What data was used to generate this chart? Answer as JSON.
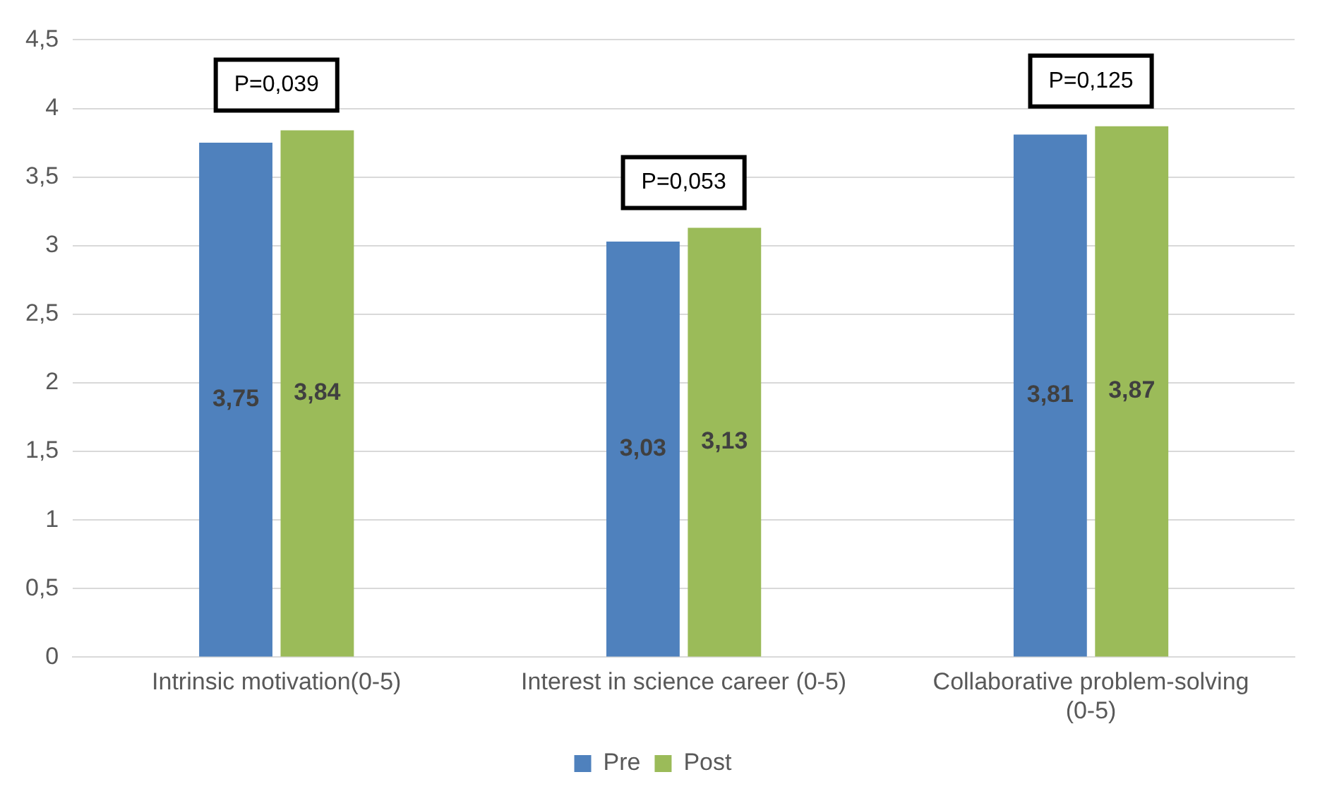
{
  "chart_data": {
    "type": "bar",
    "categories": [
      "Intrinsic motivation(0-5)",
      "Interest in science career (0-5)",
      "Collaborative problem-solving (0-5)"
    ],
    "series": [
      {
        "name": "Pre",
        "color": "#4f81bd",
        "values": [
          3.75,
          3.03,
          3.81
        ],
        "value_labels": [
          "3,75",
          "3,03",
          "3,81"
        ]
      },
      {
        "name": "Post",
        "color": "#9bbb59",
        "values": [
          3.84,
          3.13,
          3.87
        ],
        "value_labels": [
          "3,84",
          "3,13",
          "3,87"
        ]
      }
    ],
    "ylim": [
      0,
      4.5
    ],
    "yticks": [
      0,
      {
        "value": 0.5,
        "label": "0,5"
      },
      1,
      {
        "value": 1.5,
        "label": "1,5"
      },
      2,
      {
        "value": 2.5,
        "label": "2,5"
      },
      3,
      {
        "value": 3.5,
        "label": "3,5"
      },
      4,
      {
        "value": 4.5,
        "label": "4,5"
      }
    ],
    "grid": "y",
    "legend": "bottom",
    "annotations": [
      "P=0,039",
      "P=0,053",
      "P=0,125"
    ]
  }
}
